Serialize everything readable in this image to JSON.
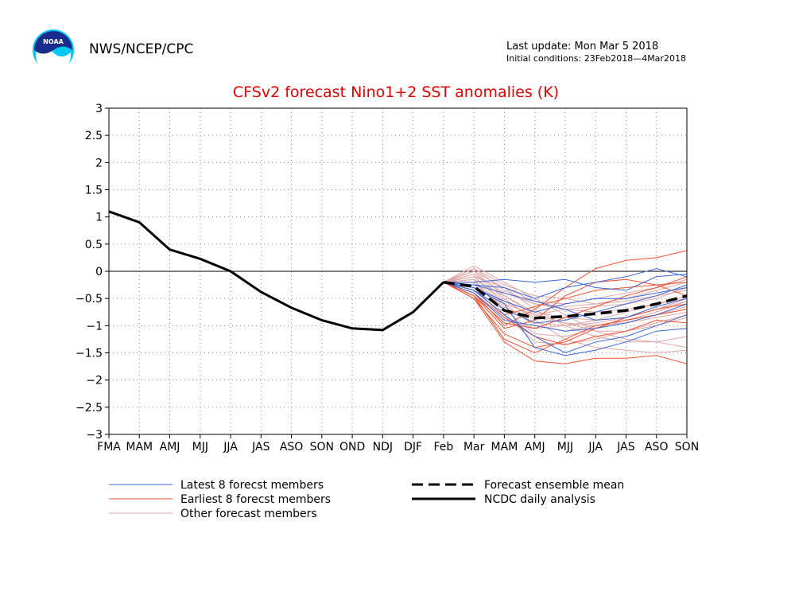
{
  "header": {
    "org": "NWS/NCEP/CPC",
    "last_update": "Last update: Mon Mar  5 2018",
    "initial_conditions": "Initial conditions: 23Feb2018—4Mar2018",
    "logo_text": "NOAA"
  },
  "colors": {
    "title": "#e00000",
    "latest": "#3a66d8",
    "earliest": "#f05030",
    "other": "#e0a8a8",
    "analysis": "#000000",
    "ensemble": "#000000"
  },
  "chart_data": {
    "type": "line",
    "title": "CFSv2 forecast Nino1+2 SST anomalies (K)",
    "xlabel": "",
    "ylabel": "",
    "categories": [
      "FMA",
      "MAM",
      "AMJ",
      "MJJ",
      "JJA",
      "JAS",
      "ASO",
      "SON",
      "OND",
      "NDJ",
      "DJF",
      "Feb",
      "Mar",
      "MAM",
      "AMJ",
      "MJJ",
      "JJA",
      "JAS",
      "ASO",
      "SON"
    ],
    "ylim": [
      -3,
      3
    ],
    "yticks": [
      "3",
      "2.5",
      "2",
      "1.5",
      "1",
      "0.5",
      "0",
      "−0.5",
      "−1",
      "−1.5",
      "−2",
      "−2.5",
      "−3"
    ],
    "ytick_values": [
      3,
      2.5,
      2,
      1.5,
      1,
      0.5,
      0,
      -0.5,
      -1,
      -1.5,
      -2,
      -2.5,
      -3
    ],
    "grid": true,
    "zero_line": true,
    "legend": [
      {
        "label": "Latest 8 forecst members",
        "style": "latest"
      },
      {
        "label": "Earliest 8 forecst members",
        "style": "earliest"
      },
      {
        "label": "Other forecast members",
        "style": "other"
      },
      {
        "label": "Forecast ensemble mean",
        "style": "ensemble"
      },
      {
        "label": "NCDC daily analysis",
        "style": "analysis"
      }
    ],
    "analysis": [
      1.1,
      0.9,
      0.4,
      0.23,
      0.0,
      -0.38,
      -0.67,
      -0.9,
      -1.05,
      -1.08,
      -0.75,
      -0.2
    ],
    "ensemble_mean": [
      -0.2,
      -0.28,
      -0.72,
      -0.86,
      -0.83,
      -0.78,
      -0.72,
      -0.6,
      -0.45
    ],
    "latest_members": [
      [
        -0.2,
        -0.25,
        -0.3,
        -0.5,
        -0.3,
        -0.2,
        -0.1,
        0.05,
        -0.1
      ],
      [
        -0.2,
        -0.3,
        -0.6,
        -1.4,
        -1.55,
        -1.45,
        -1.3,
        -1.1,
        -1.05
      ],
      [
        -0.2,
        -0.2,
        -0.15,
        -0.2,
        -0.15,
        -0.3,
        -0.35,
        -0.1,
        -0.05
      ],
      [
        -0.2,
        -0.35,
        -0.8,
        -1.2,
        -1.5,
        -1.3,
        -1.2,
        -1.0,
        -0.8
      ],
      [
        -0.2,
        -0.3,
        -0.55,
        -0.75,
        -0.6,
        -0.5,
        -0.5,
        -0.4,
        -0.3
      ],
      [
        -0.2,
        -0.4,
        -0.9,
        -1.0,
        -1.1,
        -1.05,
        -0.95,
        -0.8,
        -0.6
      ],
      [
        -0.2,
        -0.25,
        -0.4,
        -0.55,
        -0.7,
        -0.9,
        -0.85,
        -0.65,
        -0.5
      ],
      [
        -0.2,
        -0.35,
        -0.7,
        -0.95,
        -0.9,
        -0.75,
        -0.6,
        -0.45,
        -0.25
      ]
    ],
    "earliest_members": [
      [
        -0.2,
        -0.5,
        -1.3,
        -1.65,
        -1.7,
        -1.6,
        -1.6,
        -1.55,
        -1.7
      ],
      [
        -0.2,
        -0.4,
        -1.0,
        -0.7,
        -0.3,
        0.05,
        0.2,
        0.25,
        0.38
      ],
      [
        -0.2,
        -0.45,
        -1.05,
        -0.9,
        -0.45,
        -0.2,
        -0.15,
        -0.25,
        -0.45
      ],
      [
        -0.2,
        -0.5,
        -1.15,
        -1.4,
        -1.3,
        -1.05,
        -0.85,
        -0.7,
        -0.6
      ],
      [
        -0.2,
        -0.45,
        -1.25,
        -1.5,
        -1.25,
        -1.0,
        -0.9,
        -0.8,
        -0.7
      ],
      [
        -0.2,
        -0.35,
        -0.8,
        -0.65,
        -0.5,
        -0.35,
        -0.3,
        -0.25,
        -0.2
      ],
      [
        -0.2,
        -0.45,
        -0.95,
        -1.05,
        -0.85,
        -0.65,
        -0.45,
        -0.3,
        -0.1
      ],
      [
        -0.2,
        -0.4,
        -0.85,
        -1.2,
        -1.35,
        -1.2,
        -1.1,
        -0.9,
        -0.95
      ]
    ],
    "other_members": [
      [
        -0.2,
        0.1,
        -0.2,
        -0.5,
        -0.8,
        -1.1,
        -1.25,
        -1.3,
        -1.4
      ],
      [
        -0.2,
        -0.05,
        -0.5,
        -0.9,
        -1.25,
        -1.4,
        -1.45,
        -1.5,
        -1.45
      ],
      [
        -0.2,
        0.0,
        -0.3,
        -0.7,
        -1.0,
        -1.2,
        -1.3,
        -1.3,
        -1.2
      ],
      [
        -0.2,
        -0.1,
        -0.6,
        -1.0,
        -1.1,
        -1.0,
        -0.9,
        -0.8,
        -0.65
      ],
      [
        -0.2,
        -0.15,
        -0.45,
        -0.75,
        -0.85,
        -0.9,
        -0.85,
        -0.7,
        -0.55
      ],
      [
        -0.2,
        -0.2,
        -0.7,
        -1.15,
        -1.2,
        -1.05,
        -0.9,
        -0.75,
        -0.55
      ],
      [
        -0.2,
        0.05,
        -0.25,
        -0.45,
        -0.5,
        -0.6,
        -0.55,
        -0.45,
        -0.35
      ],
      [
        -0.2,
        -0.05,
        -0.4,
        -0.6,
        -0.65,
        -0.6,
        -0.5,
        -0.35,
        -0.2
      ],
      [
        -0.2,
        -0.3,
        -0.85,
        -1.05,
        -1.0,
        -0.95,
        -0.85,
        -0.7,
        -0.5
      ],
      [
        -0.2,
        -0.1,
        -0.55,
        -0.85,
        -0.95,
        -1.0,
        -0.95,
        -0.85,
        -0.75
      ],
      [
        -0.2,
        0.05,
        -0.35,
        -0.6,
        -0.7,
        -0.75,
        -0.7,
        -0.6,
        -0.5
      ],
      [
        -0.2,
        -0.2,
        -0.6,
        -0.8,
        -0.7,
        -0.65,
        -0.6,
        -0.5,
        -0.3
      ],
      [
        -0.2,
        -0.15,
        -0.8,
        -1.3,
        -1.35,
        -1.25,
        -1.1,
        -0.95,
        -0.8
      ],
      [
        -0.2,
        -0.25,
        -0.65,
        -0.95,
        -1.0,
        -0.9,
        -0.75,
        -0.6,
        -0.45
      ],
      [
        -0.2,
        0.0,
        -0.45,
        -0.8,
        -0.95,
        -1.1,
        -1.1,
        -1.0,
        -0.85
      ],
      [
        -0.2,
        -0.1,
        -0.3,
        -0.55,
        -0.6,
        -0.5,
        -0.4,
        -0.3,
        -0.15
      ]
    ]
  }
}
